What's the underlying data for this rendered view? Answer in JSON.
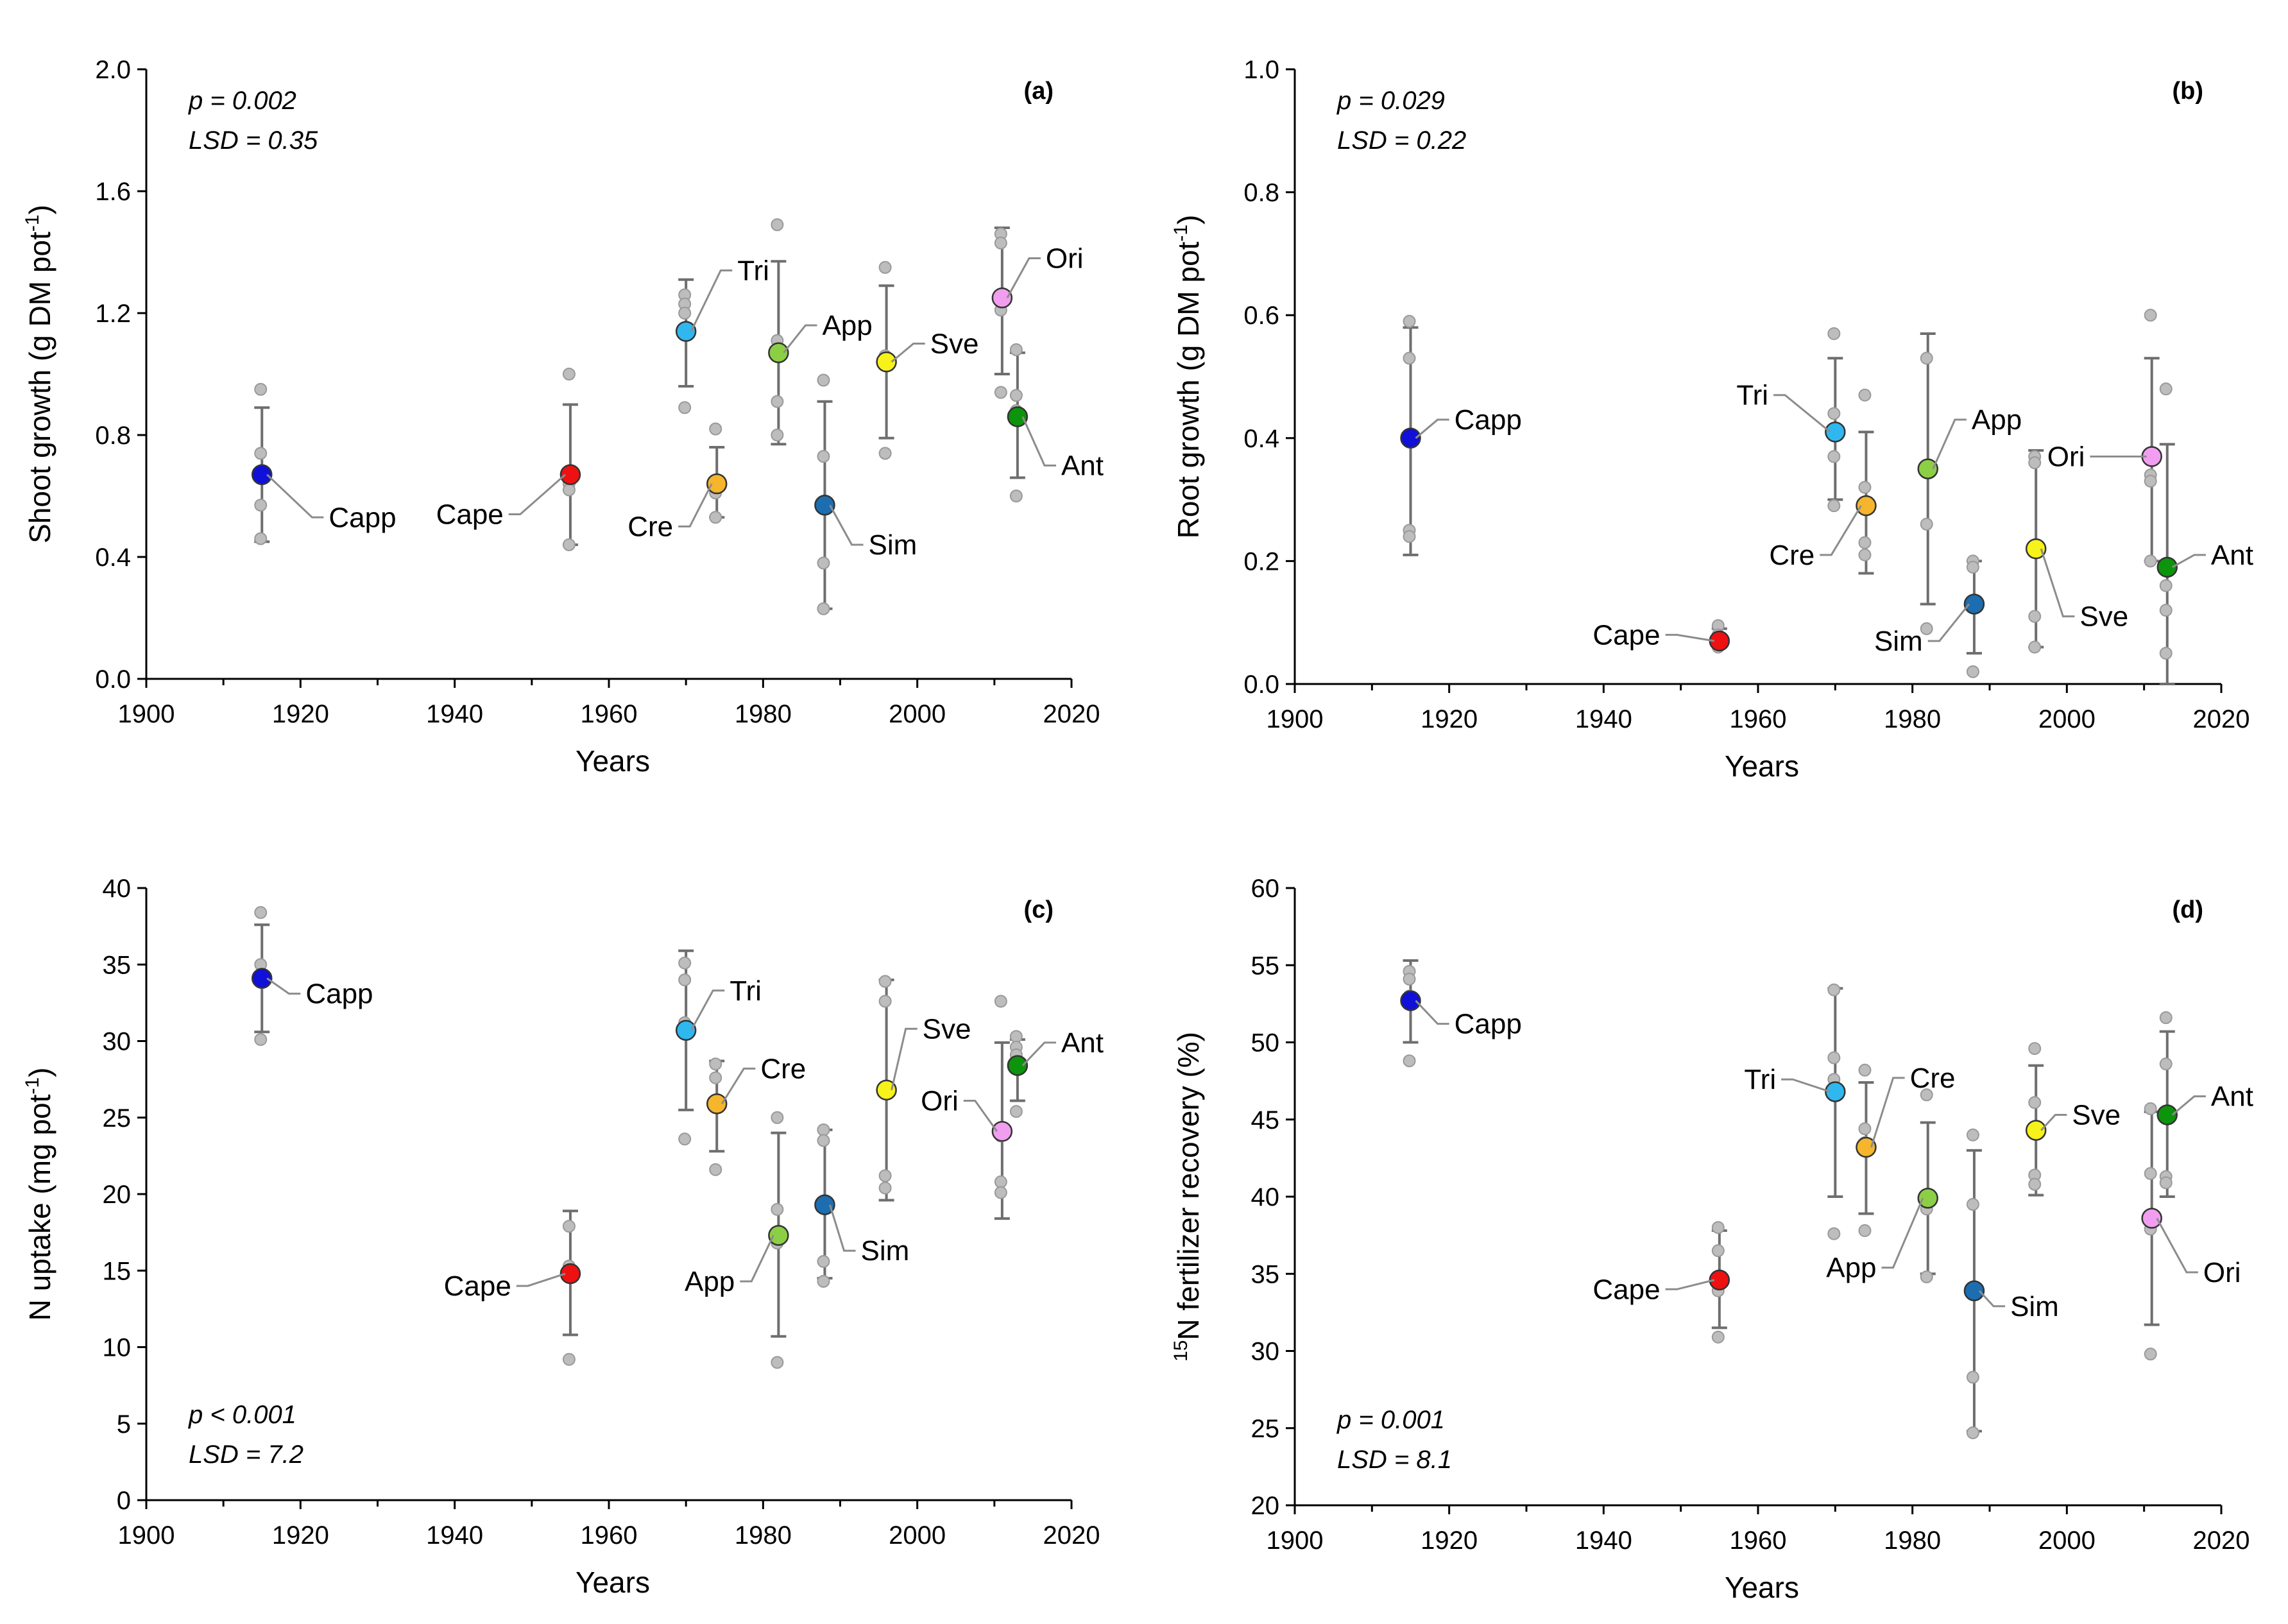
{
  "chart_data": [
    {
      "type": "scatter",
      "panel_label": "(a)",
      "title": "",
      "xlabel": "Years",
      "ylabel": "Shoot growth (g DM pot",
      "ylabel_sup": "-1",
      "ylabel_tail": ")",
      "xlim": [
        1900,
        2020
      ],
      "ylim": [
        0,
        2
      ],
      "xticks": [
        1900,
        1920,
        1940,
        1960,
        1980,
        2000,
        2020
      ],
      "yticks": [
        0,
        0.4,
        0.8,
        1.2,
        1.6,
        2.0
      ],
      "ytick_labels": [
        "0.0",
        "0.4",
        "0.8",
        "1.2",
        "1.6",
        "2.0"
      ],
      "stats": [
        "p = 0.002",
        "LSD = 0.35"
      ],
      "stats_position": "top-left",
      "series": [
        {
          "name": "Capp",
          "x": 1915,
          "mean": 0.67,
          "lo": 0.45,
          "hi": 0.89,
          "reps": [
            0.95,
            0.74,
            0.57,
            0.46
          ],
          "label_side": "right",
          "ldx": 8,
          "ldy": -0.14
        },
        {
          "name": "Cape",
          "x": 1955,
          "mean": 0.67,
          "lo": 0.44,
          "hi": 0.9,
          "reps": [
            1.0,
            0.64,
            0.62,
            0.44
          ],
          "label_side": "left",
          "ldx": -8,
          "ldy": -0.13
        },
        {
          "name": "Tri",
          "x": 1970,
          "mean": 1.14,
          "lo": 0.96,
          "hi": 1.31,
          "reps": [
            1.26,
            1.23,
            1.2,
            0.89
          ],
          "label_side": "right",
          "ldx": 6,
          "ldy": 0.2
        },
        {
          "name": "Cre",
          "x": 1974,
          "mean": 0.64,
          "lo": 0.53,
          "hi": 0.76,
          "reps": [
            0.82,
            0.64,
            0.61,
            0.53
          ],
          "label_side": "left",
          "ldx": -5,
          "ldy": -0.14
        },
        {
          "name": "App",
          "x": 1982,
          "mean": 1.07,
          "lo": 0.77,
          "hi": 1.37,
          "reps": [
            1.49,
            1.11,
            0.91,
            0.8
          ],
          "label_side": "right",
          "ldx": 5,
          "ldy": 0.09
        },
        {
          "name": "Sim",
          "x": 1988,
          "mean": 0.57,
          "lo": 0.23,
          "hi": 0.91,
          "reps": [
            0.98,
            0.73,
            0.38,
            0.23
          ],
          "label_side": "right",
          "ldx": 5,
          "ldy": -0.13
        },
        {
          "name": "Sve",
          "x": 1996,
          "mean": 1.04,
          "lo": 0.79,
          "hi": 1.29,
          "reps": [
            1.35,
            1.06,
            1.05,
            0.74
          ],
          "label_side": "right",
          "ldx": 5,
          "ldy": 0.06
        },
        {
          "name": "Ori",
          "x": 2011,
          "mean": 1.25,
          "lo": 1.0,
          "hi": 1.48,
          "reps": [
            1.46,
            1.43,
            1.21,
            0.94
          ],
          "label_side": "right",
          "ldx": 5,
          "ldy": 0.13
        },
        {
          "name": "Ant",
          "x": 2013,
          "mean": 0.86,
          "lo": 0.66,
          "hi": 1.07,
          "reps": [
            1.08,
            0.93,
            0.88,
            0.6
          ],
          "label_side": "right",
          "ldx": 5,
          "ldy": -0.16
        }
      ]
    },
    {
      "type": "scatter",
      "panel_label": "(b)",
      "title": "",
      "xlabel": "Years",
      "ylabel": "Root growth (g DM pot",
      "ylabel_sup": "-1",
      "ylabel_tail": ")",
      "xlim": [
        1900,
        2020
      ],
      "ylim": [
        0,
        1
      ],
      "xticks": [
        1900,
        1920,
        1940,
        1960,
        1980,
        2000,
        2020
      ],
      "yticks": [
        0,
        0.2,
        0.4,
        0.6,
        0.8,
        1.0
      ],
      "ytick_labels": [
        "0.0",
        "0.2",
        "0.4",
        "0.6",
        "0.8",
        "1.0"
      ],
      "stats": [
        "p = 0.029",
        "LSD = 0.22"
      ],
      "stats_position": "top-left",
      "series": [
        {
          "name": "Capp",
          "x": 1915,
          "mean": 0.4,
          "lo": 0.21,
          "hi": 0.58,
          "reps": [
            0.59,
            0.53,
            0.25,
            0.24
          ],
          "label_side": "right",
          "ldx": 5,
          "ldy": 0.03
        },
        {
          "name": "Cape",
          "x": 1955,
          "mean": 0.07,
          "lo": 0.06,
          "hi": 0.09,
          "reps": [
            0.095,
            0.08,
            0.07,
            0.06
          ],
          "label_side": "left",
          "ldx": -7,
          "ldy": 0.01
        },
        {
          "name": "Tri",
          "x": 1970,
          "mean": 0.41,
          "lo": 0.3,
          "hi": 0.53,
          "reps": [
            0.57,
            0.44,
            0.37,
            0.29
          ],
          "label_side": "left",
          "ldx": -8,
          "ldy": 0.06
        },
        {
          "name": "Cre",
          "x": 1974,
          "mean": 0.29,
          "lo": 0.18,
          "hi": 0.41,
          "reps": [
            0.47,
            0.32,
            0.23,
            0.21
          ],
          "label_side": "left",
          "ldx": -6,
          "ldy": -0.08
        },
        {
          "name": "App",
          "x": 1982,
          "mean": 0.35,
          "lo": 0.13,
          "hi": 0.57,
          "reps": [
            0.53,
            0.26,
            0.09
          ],
          "label_side": "right",
          "ldx": 5,
          "ldy": 0.08
        },
        {
          "name": "Sim",
          "x": 1988,
          "mean": 0.13,
          "lo": 0.05,
          "hi": 0.2,
          "reps": [
            0.2,
            0.19,
            0.02
          ],
          "label_side": "left",
          "ldx": -6,
          "ldy": -0.06
        },
        {
          "name": "Sve",
          "x": 1996,
          "mean": 0.22,
          "lo": 0.06,
          "hi": 0.38,
          "reps": [
            0.37,
            0.36,
            0.11,
            0.06
          ],
          "label_side": "right",
          "ldx": 5,
          "ldy": -0.11
        },
        {
          "name": "Ori",
          "x": 2011,
          "mean": 0.37,
          "lo": 0.2,
          "hi": 0.53,
          "reps": [
            0.6,
            0.34,
            0.33,
            0.2
          ],
          "label_side": "left",
          "ldx": -8,
          "ldy": 0.0
        },
        {
          "name": "Ant",
          "x": 2013,
          "mean": 0.19,
          "lo": 0.0,
          "hi": 0.39,
          "reps": [
            0.48,
            0.16,
            0.12,
            0.05
          ],
          "label_side": "right",
          "ldx": 5,
          "ldy": 0.02
        }
      ]
    },
    {
      "type": "scatter",
      "panel_label": "(c)",
      "title": "",
      "xlabel": "Years",
      "ylabel": "N uptake (mg pot",
      "ylabel_sup": "-1",
      "ylabel_tail": ")",
      "xlim": [
        1900,
        2020
      ],
      "ylim": [
        0,
        40
      ],
      "xticks": [
        1900,
        1920,
        1940,
        1960,
        1980,
        2000,
        2020
      ],
      "yticks": [
        0,
        5,
        10,
        15,
        20,
        25,
        30,
        35,
        40
      ],
      "ytick_labels": [
        "0",
        "5",
        "10",
        "15",
        "20",
        "25",
        "30",
        "35",
        "40"
      ],
      "stats": [
        "p < 0.001",
        "LSD = 7.2"
      ],
      "stats_position": "bottom-left",
      "series": [
        {
          "name": "Capp",
          "x": 1915,
          "mean": 34.1,
          "lo": 30.6,
          "hi": 37.6,
          "reps": [
            38.4,
            35.0,
            34.3,
            30.1
          ],
          "label_side": "right",
          "ldx": 5,
          "ldy": -1.0
        },
        {
          "name": "Cape",
          "x": 1955,
          "mean": 14.8,
          "lo": 10.8,
          "hi": 18.9,
          "reps": [
            17.9,
            15.3,
            9.2
          ],
          "label_side": "left",
          "ldx": -7,
          "ldy": -0.8
        },
        {
          "name": "Tri",
          "x": 1970,
          "mean": 30.7,
          "lo": 25.5,
          "hi": 35.9,
          "reps": [
            35.1,
            34.0,
            31.2,
            23.6
          ],
          "label_side": "right",
          "ldx": 5,
          "ldy": 2.6
        },
        {
          "name": "Cre",
          "x": 1974,
          "mean": 25.9,
          "lo": 22.8,
          "hi": 28.7,
          "reps": [
            28.5,
            27.6,
            25.8,
            21.6
          ],
          "label_side": "right",
          "ldx": 5,
          "ldy": 2.3
        },
        {
          "name": "App",
          "x": 1982,
          "mean": 17.3,
          "lo": 10.7,
          "hi": 24.0,
          "reps": [
            25.0,
            19.0,
            16.8,
            9.0
          ],
          "label_side": "left",
          "ldx": -5,
          "ldy": -3.0
        },
        {
          "name": "Sim",
          "x": 1988,
          "mean": 19.3,
          "lo": 14.5,
          "hi": 24.2,
          "reps": [
            24.2,
            23.5,
            15.6,
            14.3
          ],
          "label_side": "right",
          "ldx": 4,
          "ldy": -3.0
        },
        {
          "name": "Sve",
          "x": 1996,
          "mean": 26.8,
          "lo": 19.6,
          "hi": 34.0,
          "reps": [
            33.9,
            32.6,
            21.2,
            20.4
          ],
          "label_side": "right",
          "ldx": 4,
          "ldy": 4.0
        },
        {
          "name": "Ori",
          "x": 2011,
          "mean": 24.1,
          "lo": 18.4,
          "hi": 29.9,
          "reps": [
            32.6,
            23.8,
            20.8,
            20.1
          ],
          "label_side": "left",
          "ldx": -5,
          "ldy": 2.0
        },
        {
          "name": "Ant",
          "x": 2013,
          "mean": 28.4,
          "lo": 26.1,
          "hi": 30.1,
          "reps": [
            30.3,
            29.6,
            29.1,
            25.4
          ],
          "label_side": "right",
          "ldx": 5,
          "ldy": 1.5
        }
      ]
    },
    {
      "type": "scatter",
      "panel_label": "(d)",
      "title": "",
      "xlabel": "Years",
      "ylabel_pre_sup": "15",
      "ylabel": "N fertilizer recovery (%)",
      "ylabel_sup": "",
      "ylabel_tail": "",
      "xlim": [
        1900,
        2020
      ],
      "ylim": [
        20,
        60
      ],
      "xticks": [
        1900,
        1920,
        1940,
        1960,
        1980,
        2000,
        2020
      ],
      "yticks": [
        20,
        25,
        30,
        35,
        40,
        45,
        50,
        55,
        60
      ],
      "ytick_labels": [
        "20",
        "25",
        "30",
        "35",
        "40",
        "45",
        "50",
        "55",
        "60"
      ],
      "stats": [
        "p = 0.001",
        "LSD = 8.1"
      ],
      "stats_position": "bottom-left",
      "series": [
        {
          "name": "Capp",
          "x": 1915,
          "mean": 52.7,
          "lo": 50.0,
          "hi": 55.3,
          "reps": [
            54.6,
            54.1,
            53.0,
            48.8
          ],
          "label_side": "right",
          "ldx": 5,
          "ldy": -1.5
        },
        {
          "name": "Cape",
          "x": 1955,
          "mean": 34.6,
          "lo": 31.5,
          "hi": 37.8,
          "reps": [
            38.0,
            36.5,
            33.9,
            30.9
          ],
          "label_side": "left",
          "ldx": -7,
          "ldy": -0.6
        },
        {
          "name": "Tri",
          "x": 1970,
          "mean": 46.8,
          "lo": 40.0,
          "hi": 53.5,
          "reps": [
            53.4,
            49.0,
            47.6,
            37.6
          ],
          "label_side": "left",
          "ldx": -7,
          "ldy": 0.8
        },
        {
          "name": "Cre",
          "x": 1974,
          "mean": 43.2,
          "lo": 38.9,
          "hi": 47.4,
          "reps": [
            48.2,
            44.4,
            43.5,
            37.8
          ],
          "label_side": "right",
          "ldx": 5,
          "ldy": 4.5
        },
        {
          "name": "App",
          "x": 1982,
          "mean": 39.9,
          "lo": 35.0,
          "hi": 44.8,
          "reps": [
            46.6,
            39.2,
            34.8
          ],
          "label_side": "left",
          "ldx": -6,
          "ldy": -4.5
        },
        {
          "name": "Sim",
          "x": 1988,
          "mean": 33.9,
          "lo": 24.8,
          "hi": 43.0,
          "reps": [
            44.0,
            39.5,
            28.3,
            24.7
          ],
          "label_side": "right",
          "ldx": 4,
          "ldy": -1.0
        },
        {
          "name": "Sve",
          "x": 1996,
          "mean": 44.3,
          "lo": 40.1,
          "hi": 48.5,
          "reps": [
            49.6,
            46.1,
            41.4,
            40.8
          ],
          "label_side": "right",
          "ldx": 4,
          "ldy": 1.0
        },
        {
          "name": "Ori",
          "x": 2011,
          "mean": 38.6,
          "lo": 31.7,
          "hi": 45.5,
          "reps": [
            45.7,
            41.5,
            37.9,
            29.8
          ],
          "label_side": "right",
          "ldx": 6,
          "ldy": -3.5
        },
        {
          "name": "Ant",
          "x": 2013,
          "mean": 45.3,
          "lo": 40.0,
          "hi": 50.7,
          "reps": [
            51.6,
            48.6,
            41.3,
            40.9
          ],
          "label_side": "right",
          "ldx": 5,
          "ldy": 1.2
        }
      ]
    }
  ],
  "colors": {
    "Capp": "#1010d8",
    "Cape": "#ee1111",
    "Tri": "#2fb7ef",
    "Cre": "#f5b52c",
    "App": "#8ccf45",
    "Sim": "#1c6eb0",
    "Sve": "#f7f21a",
    "Ori": "#f29ef0",
    "Ant": "#0c940c",
    "rep_fill": "#bdbdbd",
    "rep_stroke": "#9a9a9a",
    "errorbar": "#6e6e6e",
    "leader": "#8c8c8c",
    "axis": "#000000"
  }
}
